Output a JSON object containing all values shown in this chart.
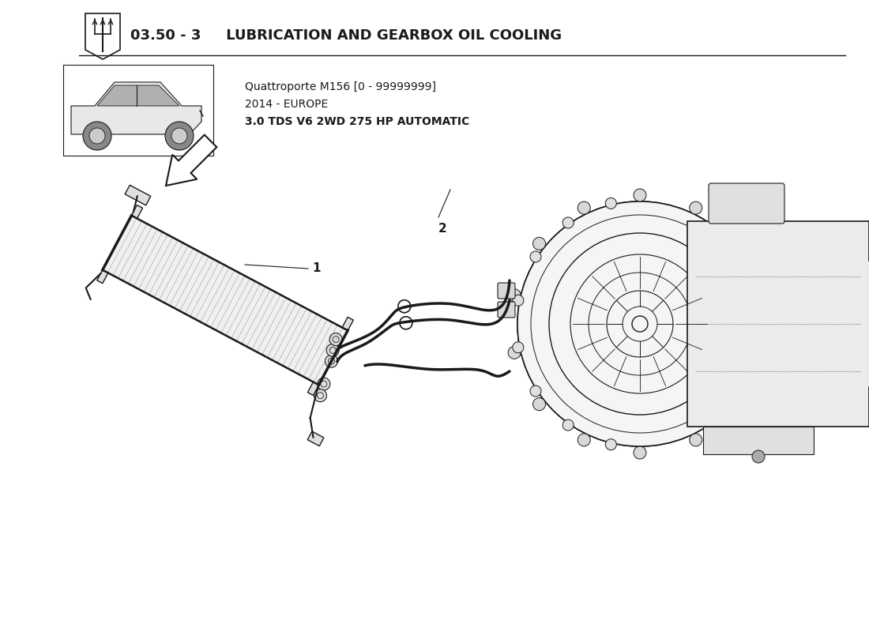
{
  "title_bold": "03.50 - 3",
  "title_rest": " LUBRICATION AND GEARBOX OIL COOLING",
  "car_info_line1": "Quattroporte M156 [0 - 99999999]",
  "car_info_line2": "2014 - EUROPE",
  "car_info_line3": "3.0 TDS V6 2WD 275 HP AUTOMATIC",
  "bg_color": "#ffffff",
  "lc": "#1a1a1a",
  "label_1": "1",
  "label_2": "2",
  "fig_width": 11.0,
  "fig_height": 8.0
}
